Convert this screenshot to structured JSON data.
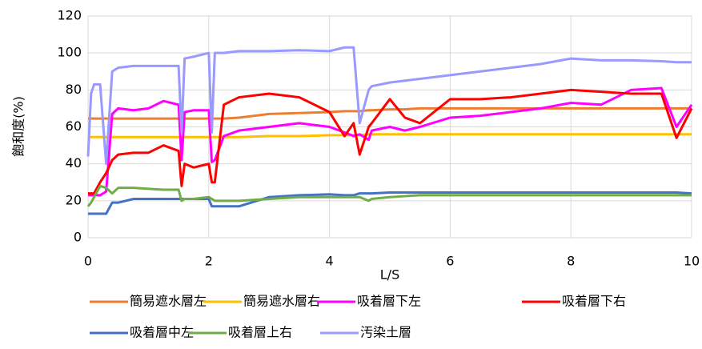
{
  "chart_data": {
    "type": "line",
    "xlabel": "L/S",
    "ylabel": "飽和度(%)",
    "x": [
      0,
      0.05,
      0.1,
      0.2,
      0.3,
      0.4,
      0.5,
      0.75,
      1,
      1.25,
      1.5,
      1.55,
      1.6,
      1.75,
      2,
      2.05,
      2.1,
      2.25,
      2.5,
      3,
      3.5,
      4,
      4.25,
      4.4,
      4.5,
      4.65,
      4.7,
      5,
      5.25,
      5.5,
      6,
      6.5,
      7,
      7.5,
      8,
      8.5,
      9,
      9.5,
      9.75,
      10
    ],
    "xlim": [
      0,
      10
    ],
    "xticks": [
      0,
      2,
      4,
      6,
      8,
      10
    ],
    "ylim": [
      0,
      120
    ],
    "yticks": [
      0,
      20,
      40,
      60,
      80,
      100,
      120
    ],
    "grid": true,
    "series": [
      {
        "name": "簡易遮水層左",
        "color": "#ed7d31",
        "values": [
          64.5,
          64.5,
          64.5,
          64.5,
          64.5,
          64.5,
          64.5,
          64.5,
          64.5,
          64.5,
          64.5,
          64.5,
          64.5,
          64.5,
          64.5,
          64.5,
          64.5,
          64.5,
          65,
          67,
          67.5,
          68,
          68.5,
          68.5,
          68.5,
          69,
          69,
          69.5,
          69.5,
          70,
          70,
          70,
          70,
          70,
          70,
          70,
          70,
          70,
          70,
          70
        ]
      },
      {
        "name": "簡易遮水層右",
        "color": "#ffc000",
        "values": [
          54.5,
          54.5,
          54.5,
          54.5,
          54.5,
          54.5,
          54.5,
          54.5,
          54.5,
          54.5,
          54.5,
          54.5,
          54.5,
          54.5,
          54.5,
          54.5,
          54.5,
          54.5,
          54.5,
          55,
          55,
          55.5,
          55.5,
          55.5,
          55.5,
          56,
          56,
          56,
          56,
          56,
          56,
          56,
          56,
          56,
          56,
          56,
          56,
          56,
          56,
          56
        ]
      },
      {
        "name": "吸着層下左",
        "color": "#ff00ff",
        "values": [
          23,
          23,
          23,
          23,
          25,
          67,
          70,
          69,
          70,
          74,
          72,
          42,
          68,
          69,
          69,
          41,
          42,
          55,
          58,
          60,
          62,
          60,
          57,
          55,
          56,
          53,
          58,
          60,
          58,
          60,
          65,
          66,
          68,
          70,
          73,
          72,
          80,
          81,
          60,
          72
        ]
      },
      {
        "name": "吸着層下右",
        "color": "#ff0000",
        "values": [
          24,
          24,
          24,
          30,
          35,
          42,
          45,
          46,
          46,
          50,
          47,
          28,
          40,
          38,
          40,
          30,
          30,
          72,
          76,
          78,
          76,
          68,
          55,
          62,
          45,
          60,
          62,
          75,
          65,
          62,
          75,
          75,
          76,
          78,
          80,
          79,
          78,
          78,
          54,
          70
        ]
      },
      {
        "name": "吸着層中左",
        "color": "#4472c4",
        "values": [
          13,
          13,
          13,
          13,
          13,
          19,
          19,
          21,
          21,
          21,
          21,
          21,
          21,
          21,
          21,
          17,
          17,
          17,
          17,
          22,
          23,
          23.5,
          23,
          23,
          24,
          24,
          24,
          24.5,
          24.5,
          24.5,
          24.5,
          24.5,
          24.5,
          24.5,
          24.5,
          24.5,
          24.5,
          24.5,
          24.5,
          24
        ]
      },
      {
        "name": "吸着層上右",
        "color": "#70ad47",
        "values": [
          17,
          19,
          22,
          28,
          27,
          24,
          27,
          27,
          26.5,
          26,
          26,
          20,
          21,
          21,
          22,
          21,
          20,
          20,
          20,
          21,
          22,
          22,
          22,
          22,
          22,
          20,
          21,
          22,
          22.5,
          23,
          23,
          23,
          23,
          23,
          23,
          23,
          23,
          23,
          23,
          23
        ]
      },
      {
        "name": "汚染土層",
        "color": "#9999ff",
        "values": [
          44,
          78,
          83,
          83,
          40,
          90,
          92,
          93,
          93,
          93,
          93,
          57,
          97,
          98,
          100,
          57,
          100,
          100,
          101,
          101,
          101.5,
          101,
          103,
          103,
          62,
          80,
          82,
          84,
          85,
          86,
          88,
          90,
          92,
          94,
          97,
          96,
          96,
          95.5,
          95,
          95
        ]
      }
    ]
  }
}
